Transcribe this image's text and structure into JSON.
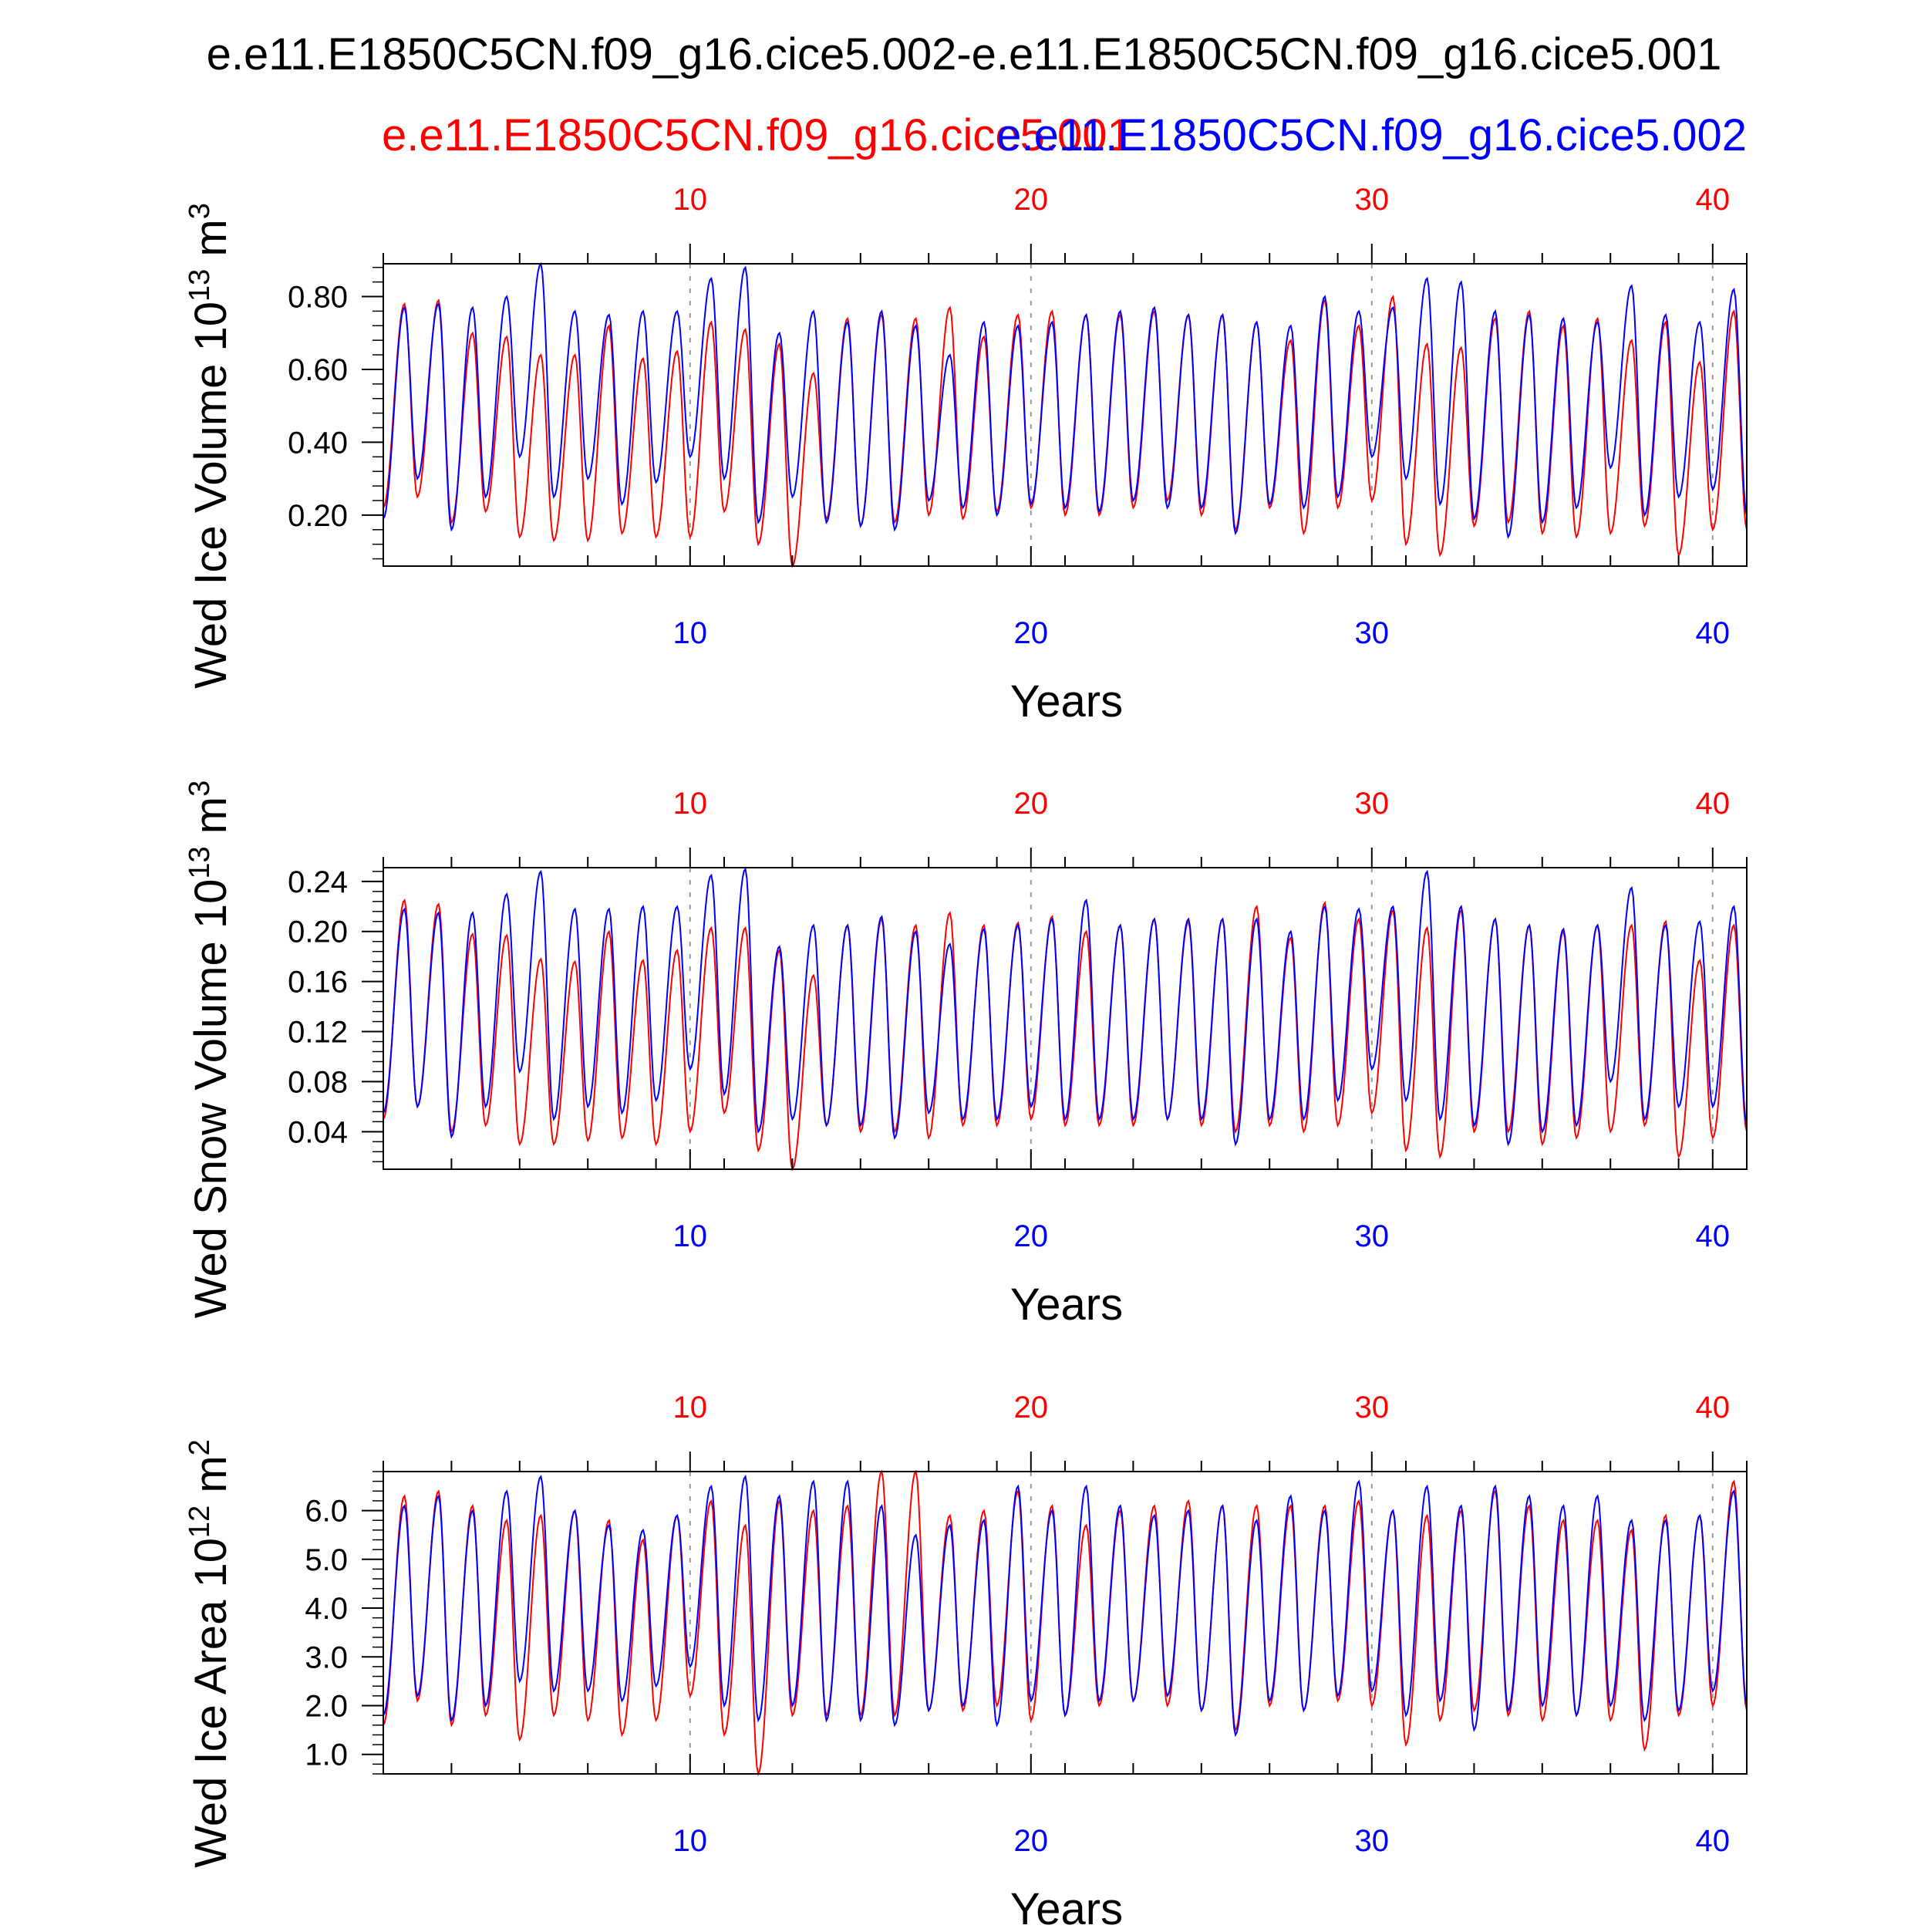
{
  "main_title": "e.e11.E1850C5CN.f09_g16.cice5.002-e.e11.E1850C5CN.f09_g16.cice5.001",
  "subtitle_left": "e.e11.E1850C5CN.f09_g16.cice5.001",
  "subtitle_right": "e.e11.E1850C5CN.f09_g16.cice5.002",
  "colors": {
    "case1": "#ff0000",
    "case2": "#0000ff",
    "axis": "#000000",
    "grid": "#999999"
  },
  "chart_data": [
    {
      "type": "line",
      "title": "",
      "ylabel": "Wed Ice Volume 10",
      "ylabel_exp": "13",
      "ylabel_unit": "m",
      "ylabel_unit_exp": "3",
      "xlabel": "Years",
      "xlim": [
        1,
        41
      ],
      "ylim": [
        0.06,
        0.89
      ],
      "yticks": [
        "0.20",
        "0.40",
        "0.60",
        "0.80"
      ],
      "xticks_top": [
        "10",
        "20",
        "30",
        "40"
      ],
      "xticks_bottom": [
        "10",
        "20",
        "30",
        "40"
      ],
      "grid_x": [
        10,
        20,
        30,
        40
      ],
      "series": [
        {
          "name": "e.e11.E1850C5CN.f09_g16.cice5.001",
          "color": "#ff0000",
          "annual_max": [
            0.78,
            0.79,
            0.7,
            0.69,
            0.64,
            0.64,
            0.72,
            0.63,
            0.65,
            0.73,
            0.71,
            0.67,
            0.59,
            0.74,
            0.75,
            0.74,
            0.77,
            0.69,
            0.75,
            0.76,
            0.75,
            0.75,
            0.76,
            0.75,
            0.75,
            0.73,
            0.68,
            0.79,
            0.72,
            0.8,
            0.67,
            0.66,
            0.74,
            0.76,
            0.72,
            0.74,
            0.68,
            0.73,
            0.62,
            0.76,
            0.7
          ],
          "annual_min": [
            0.22,
            0.25,
            0.18,
            0.21,
            0.14,
            0.13,
            0.13,
            0.15,
            0.14,
            0.14,
            0.21,
            0.12,
            0.06,
            0.19,
            0.17,
            0.18,
            0.2,
            0.19,
            0.21,
            0.22,
            0.2,
            0.2,
            0.22,
            0.24,
            0.2,
            0.16,
            0.22,
            0.15,
            0.22,
            0.24,
            0.12,
            0.09,
            0.17,
            0.18,
            0.15,
            0.14,
            0.15,
            0.17,
            0.09,
            0.16,
            0.16
          ]
        },
        {
          "name": "e.e11.E1850C5CN.f09_g16.cice5.002",
          "color": "#0000ff",
          "annual_max": [
            0.77,
            0.78,
            0.77,
            0.8,
            0.89,
            0.76,
            0.75,
            0.76,
            0.76,
            0.85,
            0.88,
            0.7,
            0.76,
            0.73,
            0.76,
            0.72,
            0.64,
            0.73,
            0.72,
            0.73,
            0.75,
            0.76,
            0.77,
            0.75,
            0.75,
            0.73,
            0.72,
            0.8,
            0.76,
            0.77,
            0.85,
            0.84,
            0.76,
            0.75,
            0.74,
            0.73,
            0.83,
            0.75,
            0.73,
            0.82,
            0.76
          ],
          "annual_min": [
            0.19,
            0.3,
            0.16,
            0.25,
            0.36,
            0.25,
            0.3,
            0.23,
            0.29,
            0.36,
            0.3,
            0.18,
            0.25,
            0.18,
            0.17,
            0.16,
            0.24,
            0.22,
            0.2,
            0.23,
            0.22,
            0.21,
            0.24,
            0.22,
            0.22,
            0.15,
            0.23,
            0.22,
            0.25,
            0.36,
            0.3,
            0.23,
            0.19,
            0.14,
            0.18,
            0.22,
            0.33,
            0.2,
            0.25,
            0.27,
            0.2
          ]
        }
      ]
    },
    {
      "type": "line",
      "title": "",
      "ylabel": "Wed Snow Volume 10",
      "ylabel_exp": "13",
      "ylabel_unit": "m",
      "ylabel_unit_exp": "3",
      "xlabel": "Years",
      "xlim": [
        1,
        41
      ],
      "ylim": [
        0.01,
        0.251
      ],
      "yticks": [
        "0.04",
        "0.08",
        "0.12",
        "0.16",
        "0.20",
        "0.24"
      ],
      "xticks_top": [
        "10",
        "20",
        "30",
        "40"
      ],
      "xticks_bottom": [
        "10",
        "20",
        "30",
        "40"
      ],
      "grid_x": [
        10,
        20,
        30,
        40
      ],
      "series": [
        {
          "name": "e.e11.E1850C5CN.f09_g16.cice5.001",
          "color": "#ff0000",
          "annual_max": [
            0.225,
            0.222,
            0.198,
            0.197,
            0.178,
            0.176,
            0.2,
            0.177,
            0.185,
            0.203,
            0.203,
            0.185,
            0.165,
            0.205,
            0.21,
            0.205,
            0.215,
            0.205,
            0.207,
            0.212,
            0.2,
            0.205,
            0.21,
            0.208,
            0.21,
            0.22,
            0.195,
            0.223,
            0.21,
            0.217,
            0.203,
            0.217,
            0.21,
            0.205,
            0.2,
            0.205,
            0.205,
            0.208,
            0.177,
            0.205,
            0.2
          ],
          "annual_min": [
            0.05,
            0.06,
            0.04,
            0.045,
            0.03,
            0.03,
            0.033,
            0.035,
            0.03,
            0.04,
            0.055,
            0.025,
            0.01,
            0.045,
            0.04,
            0.04,
            0.035,
            0.045,
            0.045,
            0.05,
            0.045,
            0.045,
            0.045,
            0.05,
            0.045,
            0.04,
            0.045,
            0.04,
            0.045,
            0.055,
            0.025,
            0.02,
            0.04,
            0.04,
            0.03,
            0.035,
            0.04,
            0.045,
            0.02,
            0.035,
            0.04
          ]
        },
        {
          "name": "e.e11.E1850C5CN.f09_g16.cice5.002",
          "color": "#0000ff",
          "annual_max": [
            0.218,
            0.215,
            0.215,
            0.23,
            0.248,
            0.218,
            0.218,
            0.22,
            0.22,
            0.245,
            0.25,
            0.188,
            0.205,
            0.205,
            0.212,
            0.2,
            0.19,
            0.202,
            0.205,
            0.21,
            0.225,
            0.205,
            0.21,
            0.21,
            0.21,
            0.21,
            0.2,
            0.22,
            0.218,
            0.22,
            0.248,
            0.22,
            0.21,
            0.205,
            0.202,
            0.205,
            0.235,
            0.205,
            0.208,
            0.22,
            0.2
          ],
          "annual_min": [
            0.055,
            0.06,
            0.036,
            0.06,
            0.088,
            0.05,
            0.06,
            0.055,
            0.065,
            0.09,
            0.07,
            0.04,
            0.05,
            0.045,
            0.045,
            0.035,
            0.055,
            0.05,
            0.05,
            0.06,
            0.05,
            0.05,
            0.05,
            0.05,
            0.05,
            0.03,
            0.05,
            0.05,
            0.065,
            0.09,
            0.065,
            0.05,
            0.045,
            0.03,
            0.04,
            0.045,
            0.08,
            0.05,
            0.06,
            0.06,
            0.045
          ]
        }
      ]
    },
    {
      "type": "line",
      "title": "",
      "ylabel": "Wed Ice Area 10",
      "ylabel_exp": "12",
      "ylabel_unit": "m",
      "ylabel_unit_exp": "2",
      "xlabel": "Years",
      "xlim": [
        1,
        41
      ],
      "ylim": [
        0.6,
        6.8
      ],
      "yticks": [
        "1.0",
        "2.0",
        "3.0",
        "4.0",
        "5.0",
        "6.0"
      ],
      "xticks_top": [
        "10",
        "20",
        "30",
        "40"
      ],
      "xticks_bottom": [
        "10",
        "20",
        "30",
        "40"
      ],
      "grid_x": [
        10,
        20,
        30,
        40
      ],
      "series": [
        {
          "name": "e.e11.E1850C5CN.f09_g16.cice5.001",
          "color": "#ff0000",
          "annual_max": [
            6.3,
            6.4,
            6.1,
            5.8,
            5.9,
            6.0,
            5.8,
            5.4,
            5.9,
            6.2,
            5.7,
            6.2,
            6.0,
            6.1,
            6.8,
            6.8,
            5.9,
            6.0,
            6.4,
            6.1,
            5.7,
            6.0,
            6.1,
            6.2,
            6.1,
            6.1,
            6.1,
            6.1,
            6.2,
            6.0,
            5.9,
            6.0,
            6.4,
            6.1,
            5.8,
            5.8,
            5.6,
            5.9,
            5.9,
            6.6,
            5.9
          ],
          "annual_min": [
            1.6,
            2.1,
            1.6,
            1.8,
            1.3,
            1.8,
            1.7,
            1.4,
            1.7,
            2.2,
            1.4,
            0.6,
            1.8,
            1.8,
            1.8,
            1.8,
            1.9,
            1.9,
            2.0,
            1.7,
            1.8,
            2.0,
            2.1,
            2.0,
            1.9,
            1.5,
            2.0,
            1.9,
            2.1,
            2.0,
            1.2,
            1.7,
            1.9,
            1.8,
            1.7,
            1.8,
            1.7,
            1.1,
            1.8,
            2.0,
            1.9
          ]
        },
        {
          "name": "e.e11.E1850C5CN.f09_g16.cice5.002",
          "color": "#0000ff",
          "annual_max": [
            6.1,
            6.3,
            6.0,
            6.4,
            6.7,
            6.0,
            5.7,
            5.6,
            5.9,
            6.5,
            6.7,
            6.3,
            6.6,
            6.6,
            6.1,
            5.5,
            5.7,
            5.8,
            6.5,
            6.0,
            6.5,
            6.1,
            5.9,
            6.0,
            6.1,
            5.8,
            6.3,
            6.0,
            6.6,
            6.0,
            6.5,
            6.1,
            6.5,
            6.3,
            6.1,
            6.3,
            5.8,
            5.8,
            5.9,
            6.4,
            6.4
          ],
          "annual_min": [
            1.8,
            2.2,
            1.7,
            2.0,
            2.5,
            2.3,
            2.3,
            2.1,
            2.4,
            2.8,
            2.0,
            1.7,
            2.0,
            1.7,
            1.7,
            1.6,
            1.9,
            2.0,
            1.6,
            2.1,
            1.8,
            2.1,
            2.1,
            2.2,
            1.9,
            1.4,
            2.1,
            1.9,
            2.2,
            2.3,
            1.8,
            2.1,
            1.5,
            1.9,
            2.0,
            1.8,
            2.0,
            1.7,
            1.9,
            2.3,
            2.0
          ]
        }
      ]
    }
  ]
}
